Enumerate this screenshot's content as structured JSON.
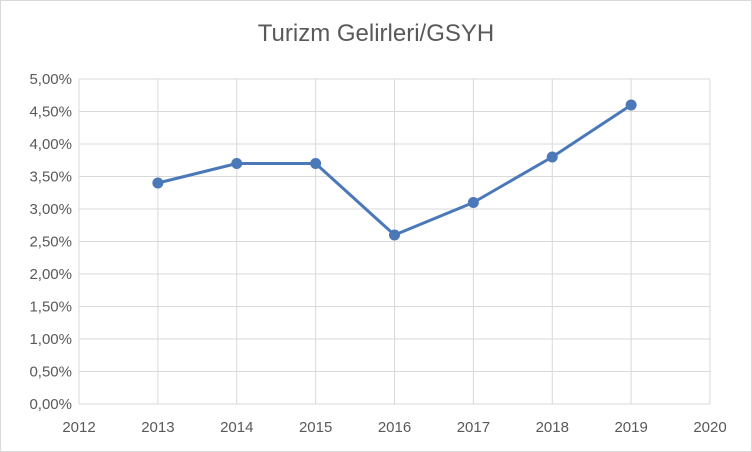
{
  "chart_data": {
    "type": "scatter",
    "title": "Turizm Gelirleri/GSYH",
    "xlabel": "",
    "ylabel": "",
    "x": [
      2013,
      2014,
      2015,
      2016,
      2017,
      2018,
      2019
    ],
    "series": [
      {
        "values": [
          0.034,
          0.037,
          0.037,
          0.026,
          0.031,
          0.038,
          0.046
        ]
      }
    ],
    "xlim": [
      2012,
      2020
    ],
    "ylim": [
      0,
      0.05
    ],
    "x_ticks": [
      "2012",
      "2013",
      "2014",
      "2015",
      "2016",
      "2017",
      "2018",
      "2019",
      "2020"
    ],
    "y_ticks": [
      "0,00%",
      "0,50%",
      "1,00%",
      "1,50%",
      "2,00%",
      "2,50%",
      "3,00%",
      "3,50%",
      "4,00%",
      "4,50%",
      "5,00%"
    ],
    "grid": true,
    "legend": "none",
    "colors": {
      "series": "#4a78b8",
      "grid": "#d9d9d9",
      "text": "#595959"
    }
  }
}
